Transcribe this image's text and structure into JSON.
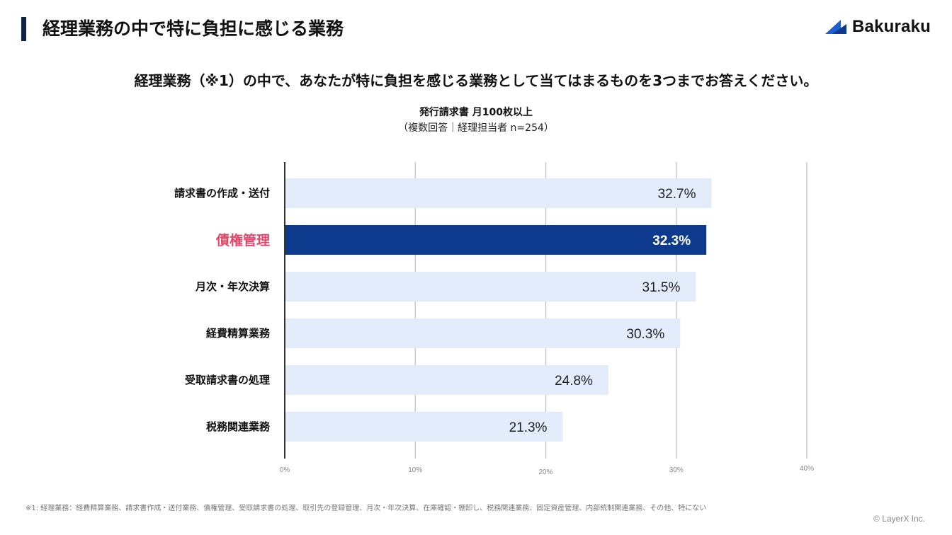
{
  "header": {
    "title": "経理業務の中で特に負担に感じる業務",
    "logo_text": "Bakuraku"
  },
  "question": "経理業務（※1）の中で、あなたが特に負担を感じる業務として当てはまるものを3つまでお答えください。",
  "chart_data": {
    "type": "bar",
    "orientation": "horizontal",
    "title": "発行請求書 月100枚以上",
    "subtitle": "（複数回答｜経理担当者 n=254）",
    "categories": [
      "請求書の作成・送付",
      "債権管理",
      "月次・年次決算",
      "経費精算業務",
      "受取請求書の処理",
      "税務関連業務"
    ],
    "values": [
      32.7,
      32.3,
      31.5,
      30.3,
      24.8,
      21.3
    ],
    "value_labels": [
      "32.7%",
      "32.3%",
      "31.5%",
      "30.3%",
      "24.8%",
      "21.3%"
    ],
    "highlight_index": 1,
    "xlim": [
      0,
      40
    ],
    "ticks": [
      0,
      10,
      20,
      30,
      40
    ],
    "tick_labels": [
      "0%",
      "10%",
      "20%",
      "30%",
      "40%"
    ],
    "grid": true,
    "colors": {
      "bar": "#e3ecfb",
      "bar_highlight": "#0d3a8c",
      "label_highlight": "#e5476b",
      "grid": "#c8c8c8",
      "axis": "#333333"
    }
  },
  "footnote": "※1: 経理業務：経費精算業務、請求書作成・送付業務、債権管理、受取請求書の処理、取引先の登録管理、月次・年次決算、在庫確認・棚卸し、税務関連業務、固定資産管理、内部統制関連業務、その他、特にない",
  "copyright": "© LayerX Inc."
}
